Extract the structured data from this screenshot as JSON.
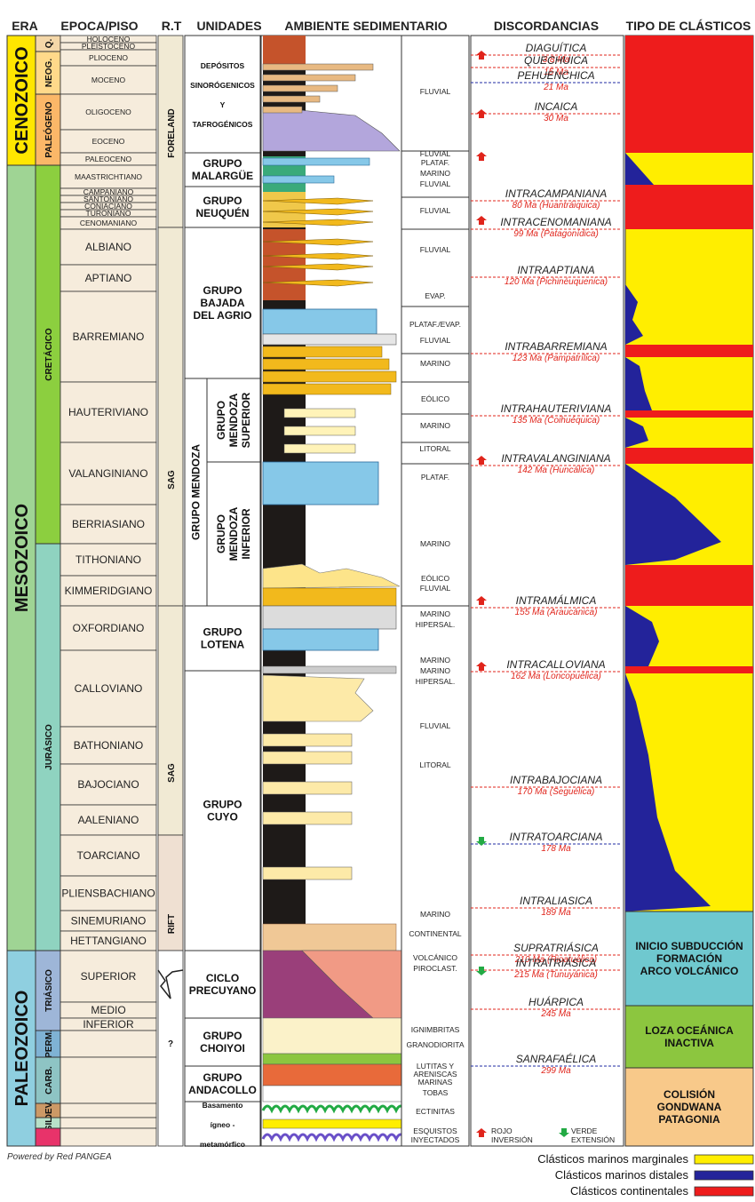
{
  "headers": {
    "era": "ERA",
    "epoch": "EPOCA/PISO",
    "rt": "R.T",
    "units": "UNIDADES",
    "environment": "AMBIENTE SEDIMENTARIO",
    "discordances": "DISCORDANCIAS",
    "clastics": "TIPO DE CLÁSTICOS"
  },
  "eras": [
    {
      "label": "CENOZOICO",
      "color": "#ffe600"
    },
    {
      "label": "MESOZOICO",
      "color": "#9fd494"
    },
    {
      "label": "PALEOZOICO",
      "color": "#8fcfe0"
    }
  ],
  "periods": [
    {
      "label": "Q.",
      "color": "#f4d7a8"
    },
    {
      "label": "NEOG.",
      "color": "#ffd98a"
    },
    {
      "label": "PALEÓGENO",
      "color": "#fbb768"
    },
    {
      "label": "CRETÁCICO",
      "color": "#8ccf3f"
    },
    {
      "label": "JURÁSICO",
      "color": "#8fd3c0"
    },
    {
      "label": "TRIÁSICO",
      "color": "#9eb6d8"
    },
    {
      "label": "PERM.",
      "color": "#7fb2d4"
    },
    {
      "label": "CARB.",
      "color": "#8ec4c4"
    },
    {
      "label": "DEV.",
      "color": "#cc9966"
    },
    {
      "label": "SIL.",
      "color": "#b8e0c8"
    },
    {
      "label": "",
      "color": "#e8336a"
    }
  ],
  "stages": [
    {
      "label": "HOLOCENO",
      "small": true
    },
    {
      "label": "PLEISTOCENO",
      "small": true
    },
    {
      "label": "PLIOCENO",
      "small": true
    },
    {
      "label": "MOCENO",
      "small": true
    },
    {
      "label": "OLIGOCENO",
      "small": true
    },
    {
      "label": "EOCENO",
      "small": true
    },
    {
      "label": "PALEOCENO",
      "small": true
    },
    {
      "label": "MAASTRICHTIANO",
      "small": true
    },
    {
      "label": "CAMPANIANO",
      "small": true
    },
    {
      "label": "SANTONIANO",
      "small": true
    },
    {
      "label": "CONIACIANO",
      "small": true
    },
    {
      "label": "TURONIANO",
      "small": true
    },
    {
      "label": "CENOMANIANO",
      "small": true
    },
    {
      "label": "ALBIANO",
      "small": false
    },
    {
      "label": "APTIANO",
      "small": false
    },
    {
      "label": "BARREMIANO",
      "small": false
    },
    {
      "label": "HAUTERIVIANO",
      "small": false
    },
    {
      "label": "VALANGINIANO",
      "small": false
    },
    {
      "label": "BERRIASIANO",
      "small": false
    },
    {
      "label": "TITHONIANO",
      "small": false
    },
    {
      "label": "KIMMERIDGIANO",
      "small": false
    },
    {
      "label": "OXFORDIANO",
      "small": false
    },
    {
      "label": "CALLOVIANO",
      "small": false
    },
    {
      "label": "BATHONIANO",
      "small": false
    },
    {
      "label": "BAJOCIANO",
      "small": false
    },
    {
      "label": "AALENIANO",
      "small": false
    },
    {
      "label": "TOARCIANO",
      "small": false
    },
    {
      "label": "PLIENSBACHIANO",
      "small": false
    },
    {
      "label": "SINEMURIANO",
      "small": false
    },
    {
      "label": "HETTANGIANO",
      "small": false
    },
    {
      "label": "SUPERIOR",
      "small": false
    },
    {
      "label": "MEDIO",
      "small": false
    },
    {
      "label": "INFERIOR",
      "small": false
    },
    {
      "label": "",
      "small": false
    },
    {
      "label": "",
      "small": false
    },
    {
      "label": "",
      "small": false
    },
    {
      "label": "",
      "small": false
    },
    {
      "label": "",
      "small": false
    }
  ],
  "tectonic_regimes": [
    "FORELAND",
    "SAG",
    "SAG",
    "RIFT",
    "?"
  ],
  "units": [
    {
      "lines": [
        "DEPÓSITOS",
        "SINORÓGENICOS",
        "Y",
        "TAFROGÉNICOS"
      ],
      "small": true
    },
    {
      "lines": [
        "GRUPO",
        "MALARGÜE"
      ],
      "small": false
    },
    {
      "lines": [
        "GRUPO",
        "NEUQUÉN"
      ],
      "small": false
    },
    {
      "lines": [
        "GRUPO",
        "BAJADA",
        "DEL AGRIO"
      ],
      "small": false
    },
    {
      "lines": [
        "GRUPO MENDOZA"
      ],
      "small": false
    },
    {
      "lines": [
        "GRUPO",
        "MENDOZA",
        "SUPERIOR"
      ],
      "small": false
    },
    {
      "lines": [
        "GRUPO",
        "MENDOZA",
        "INFERIOR"
      ],
      "small": false
    },
    {
      "lines": [
        "GRUPO",
        "LOTENA"
      ],
      "small": false
    },
    {
      "lines": [
        "GRUPO",
        "CUYO"
      ],
      "small": false
    },
    {
      "lines": [
        "CICLO",
        "PRECUYANO"
      ],
      "small": false
    },
    {
      "lines": [
        "GRUPO",
        "CHOIYOI"
      ],
      "small": false
    },
    {
      "lines": [
        "GRUPO",
        "ANDACOLLO"
      ],
      "small": false
    },
    {
      "lines": [
        "Basamento",
        "ígneo -",
        "metamórfico"
      ],
      "small": true
    }
  ],
  "environments": [
    "FLUVIAL",
    "FLUVIAL",
    "PLATAF.",
    "MARINO",
    "FLUVIAL",
    "FLUVIAL",
    "FLUVIAL",
    "EVAP.",
    "PLATAF./EVAP.",
    "FLUVIAL",
    "MARINO",
    "EÓLICO",
    "MARINO",
    "LITORAL",
    "PLATAF.",
    "MARINO",
    "EÓLICO",
    "FLUVIAL",
    "MARINO",
    "HIPERSAL.",
    "MARINO",
    "MARINO",
    "HIPERSAL.",
    "FLUVIAL",
    "LITORAL",
    "MARINO",
    "CONTINENTAL",
    "VOLCÁNICO",
    "PIROCLAST.",
    "IGNIMBRITAS",
    "GRANODIORITA",
    "LUTITAS Y",
    "ARENISCAS",
    "MARINAS",
    "TOBAS",
    "ECTINITAS",
    "ESQUISTOS",
    "INYECTADOS"
  ],
  "discordances": [
    {
      "name": "DIAGUÍTICA",
      "age": "3.8 Ma",
      "style": "inv"
    },
    {
      "name": "QUECHUICA",
      "age": "15 Ma",
      "style": "inv"
    },
    {
      "name": "PEHUENCHICA",
      "age": "21 Ma",
      "style": "ext"
    },
    {
      "name": "INCAICA",
      "age": "30 Ma",
      "style": "inv"
    },
    {
      "name": "INTRACAMPANIANA",
      "age": "80 Ma (Huantráiquica)",
      "style": "inv"
    },
    {
      "name": "INTRACENOMANIANA",
      "age": "99 Ma (Patagonídica)",
      "style": "inv"
    },
    {
      "name": "INTRAAPTIANA",
      "age": "120 Ma (Pichinéuquenica)",
      "style": "inv"
    },
    {
      "name": "INTRABARREMIANA",
      "age": "123 Ma (Pampatrílica)",
      "style": "inv"
    },
    {
      "name": "INTRAHAUTERIVIANA",
      "age": "135 Ma (Coihuéquica)",
      "style": "inv"
    },
    {
      "name": "INTRAVALANGINIANA",
      "age": "142 Ma (Huncálica)",
      "style": "inv"
    },
    {
      "name": "INTRAMÁLMICA",
      "age": "155 Ma (Araucánica)",
      "style": "inv"
    },
    {
      "name": "INTRACALLOVIANA",
      "age": "162 Ma (Loncopuélica)",
      "style": "inv"
    },
    {
      "name": "INTRABAJOCIANA",
      "age": "170 Ma (Seguélica)",
      "style": "inv"
    },
    {
      "name": "INTRATOARCIANA",
      "age": "178 Ma",
      "style": "ext"
    },
    {
      "name": "INTRALIASICA",
      "age": "189 Ma",
      "style": "inv"
    },
    {
      "name": "SUPRATRIÁSICA",
      "age": "210 Ma (Rioatuélica)",
      "style": "inv"
    },
    {
      "name": "INTRATRIÁSICA",
      "age": "215 Ma (Tunuyánica)",
      "style": "inv"
    },
    {
      "name": "HUÁRPICA",
      "age": "245 Ma",
      "style": "inv"
    },
    {
      "name": "SANRAFAÉLICA",
      "age": "299 Ma",
      "style": "ext"
    }
  ],
  "arrow_legend": {
    "red_label": [
      "ROJO",
      "INVERSIÓN"
    ],
    "green_label": [
      "VERDE",
      "EXTENSIÓN"
    ]
  },
  "clastic_boxes": [
    {
      "lines": [
        "INICIO SUBDUCCIÓN",
        "FORMACIÓN",
        "ARCO VOLCÁNICO"
      ],
      "color": "#6fc8cf"
    },
    {
      "lines": [
        "LOZA OCEÁNICA",
        "INACTIVA"
      ],
      "color": "#8cc63f"
    },
    {
      "lines": [
        "COLISIÓN",
        "GONDWANA",
        "PATAGONIA"
      ],
      "color": "#f8c98a"
    }
  ],
  "clastic_colors": {
    "marginal": "#ffee00",
    "distal": "#23239a",
    "continental": "#ee1c1c"
  },
  "legend": [
    {
      "label": "Clásticos marinos marginales",
      "color": "#ffee00"
    },
    {
      "label": "Clásticos marinos distales",
      "color": "#23239a"
    },
    {
      "label": "Clásticos continentales",
      "color": "#ee1c1c"
    }
  ],
  "credit": "Powered by Red PANGEA"
}
